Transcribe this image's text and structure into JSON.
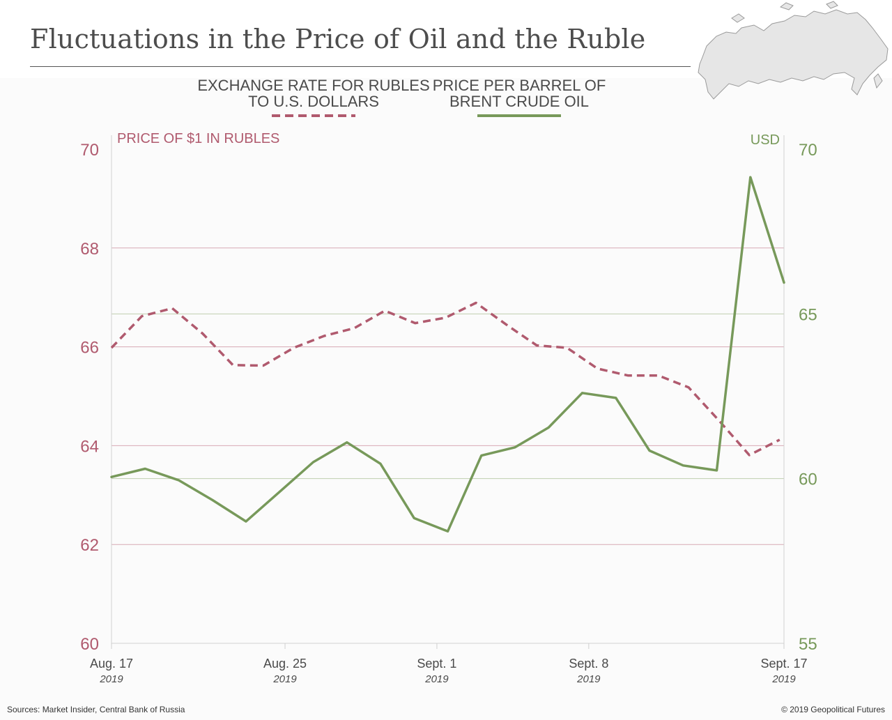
{
  "title": "Fluctuations in the Price of Oil and the Ruble",
  "footer": {
    "sources": "Sources: Market Insider, Central Bank of Russia",
    "copyright": "© 2019 Geopolitical Futures"
  },
  "chart_data": {
    "type": "line",
    "title": "Fluctuations in the Price of Oil and the Ruble",
    "legend": {
      "position": "top-center",
      "entries": [
        {
          "lines": [
            "EXCHANGE RATE FOR RUBLES",
            "TO U.S. DOLLARS"
          ],
          "style": "dashed",
          "color": "#b05a6e"
        },
        {
          "lines": [
            "PRICE PER BARREL OF",
            "BRENT CRUDE OIL"
          ],
          "style": "solid",
          "color": "#77995a"
        }
      ]
    },
    "x_ticks": [
      {
        "label": "Aug. 17",
        "sublabel": "2019",
        "day": 0
      },
      {
        "label": "Aug. 25",
        "sublabel": "2019",
        "day": 8
      },
      {
        "label": "Sept. 1",
        "sublabel": "2019",
        "day": 15
      },
      {
        "label": "Sept. 8",
        "sublabel": "2019",
        "day": 22
      },
      {
        "label": "Sept. 17",
        "sublabel": "2019",
        "day": 31
      }
    ],
    "x_range": [
      0,
      31
    ],
    "axes": {
      "left": {
        "label": "PRICE OF $1 IN RUBLES",
        "range": [
          60,
          70
        ],
        "ticks": [
          60,
          62,
          64,
          66,
          68,
          70
        ],
        "color": "#b05a6e",
        "gridlines": [
          62,
          64,
          66,
          68
        ]
      },
      "right": {
        "label": "USD",
        "range": [
          55,
          70
        ],
        "ticks": [
          55,
          60,
          65,
          70
        ],
        "color": "#77995a",
        "gridlines": [
          60,
          65
        ]
      }
    },
    "series": [
      {
        "name": "Exchange rate for rubles to U.S. dollars",
        "axis": "left",
        "style": "dashed",
        "color": "#b05a6e",
        "x": [
          0,
          1.4,
          2.8,
          4.2,
          5.6,
          7,
          8.4,
          9.8,
          11.2,
          12.6,
          14,
          15.4,
          16.8,
          18.2,
          19.6,
          21,
          22.4,
          23.8,
          25.2,
          26.6,
          28,
          29.4,
          30.8
        ],
        "values": [
          65.98,
          66.62,
          66.78,
          66.27,
          65.63,
          65.62,
          65.98,
          66.22,
          66.38,
          66.73,
          66.48,
          66.59,
          66.89,
          66.45,
          66.03,
          65.98,
          65.56,
          65.42,
          65.42,
          65.18,
          64.51,
          63.81,
          64.12
        ]
      },
      {
        "name": "Price per barrel of Brent crude oil",
        "axis": "right",
        "style": "solid",
        "color": "#77995a",
        "x": [
          0,
          1.55,
          3.1,
          4.65,
          6.2,
          7.75,
          9.3,
          10.85,
          12.4,
          13.95,
          15.5,
          17.05,
          18.6,
          20.15,
          21.7,
          23.25,
          24.8,
          26.35,
          27.9,
          29.45,
          31
        ],
        "values": [
          60.05,
          60.3,
          59.95,
          59.35,
          58.7,
          59.6,
          60.5,
          61.1,
          60.45,
          58.8,
          58.4,
          60.7,
          60.95,
          61.55,
          62.6,
          62.45,
          60.85,
          60.4,
          60.25,
          69.15,
          65.95
        ]
      }
    ]
  }
}
